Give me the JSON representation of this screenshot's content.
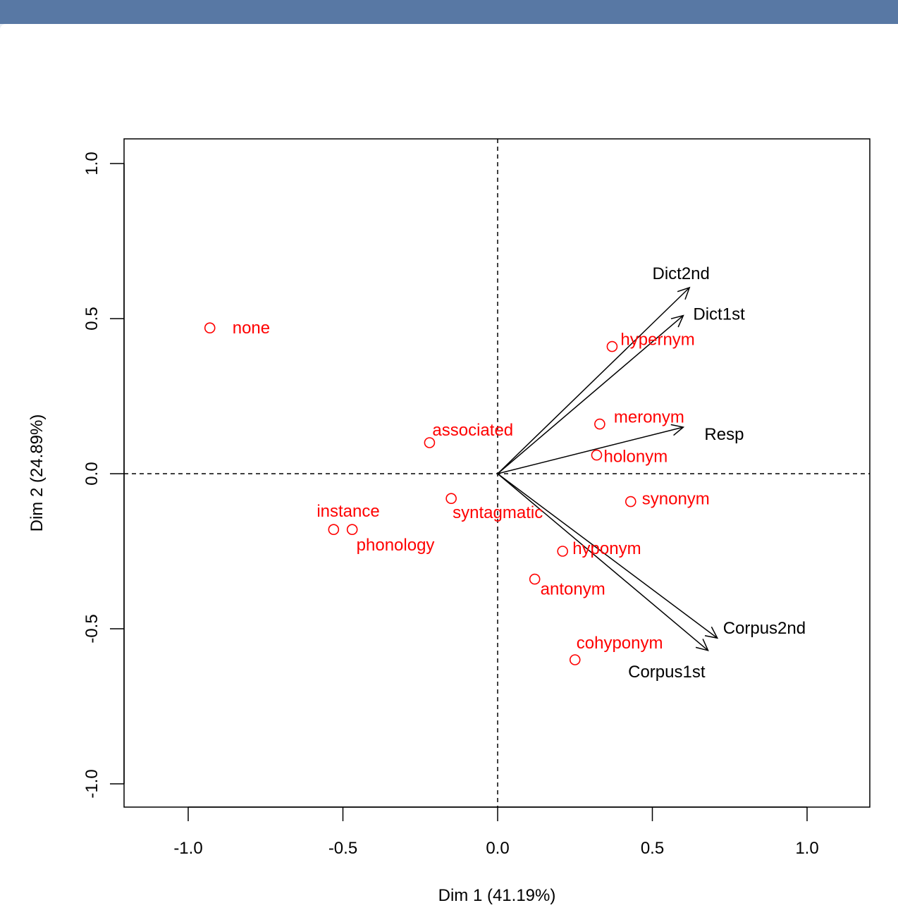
{
  "chart_data": {
    "type": "scatter",
    "xlabel": "Dim 1 (41.19%)",
    "ylabel": "Dim 2 (24.89%)",
    "xlim": [
      -1.2,
      1.2
    ],
    "ylim": [
      -1.08,
      1.08
    ],
    "xticks": [
      -1.0,
      -0.5,
      0.0,
      0.5,
      1.0
    ],
    "yticks": [
      -1.0,
      -0.5,
      0.0,
      0.5,
      1.0
    ],
    "xtick_labels": [
      "-1.0",
      "-0.5",
      "0.0",
      "0.5",
      "1.0"
    ],
    "ytick_labels": [
      "-1.0",
      "-0.5",
      "0.0",
      "0.5",
      "1.0"
    ],
    "reference_lines": [
      "x=0",
      "y=0"
    ],
    "point_color": "#ff0000",
    "arrow_color": "#000000",
    "points": [
      {
        "label": "none",
        "x": -0.93,
        "y": 0.47
      },
      {
        "label": "hypernym",
        "x": 0.37,
        "y": 0.41
      },
      {
        "label": "meronym",
        "x": 0.33,
        "y": 0.16
      },
      {
        "label": "associated",
        "x": -0.22,
        "y": 0.1
      },
      {
        "label": "holonym",
        "x": 0.32,
        "y": 0.06
      },
      {
        "label": "synonym",
        "x": 0.43,
        "y": -0.09
      },
      {
        "label": "syntagmatic",
        "x": -0.15,
        "y": -0.08
      },
      {
        "label": "instance",
        "x": -0.53,
        "y": -0.18
      },
      {
        "label": "phonology",
        "x": -0.47,
        "y": -0.18
      },
      {
        "label": "hyponym",
        "x": 0.21,
        "y": -0.25
      },
      {
        "label": "antonym",
        "x": 0.12,
        "y": -0.34
      },
      {
        "label": "cohyponym",
        "x": 0.25,
        "y": -0.6
      }
    ],
    "arrows": [
      {
        "label": "Dict2nd",
        "x": 0.62,
        "y": 0.6
      },
      {
        "label": "Dict1st",
        "x": 0.6,
        "y": 0.51
      },
      {
        "label": "Resp",
        "x": 0.6,
        "y": 0.15
      },
      {
        "label": "Corpus2nd",
        "x": 0.71,
        "y": -0.53
      },
      {
        "label": "Corpus1st",
        "x": 0.68,
        "y": -0.57
      }
    ]
  }
}
